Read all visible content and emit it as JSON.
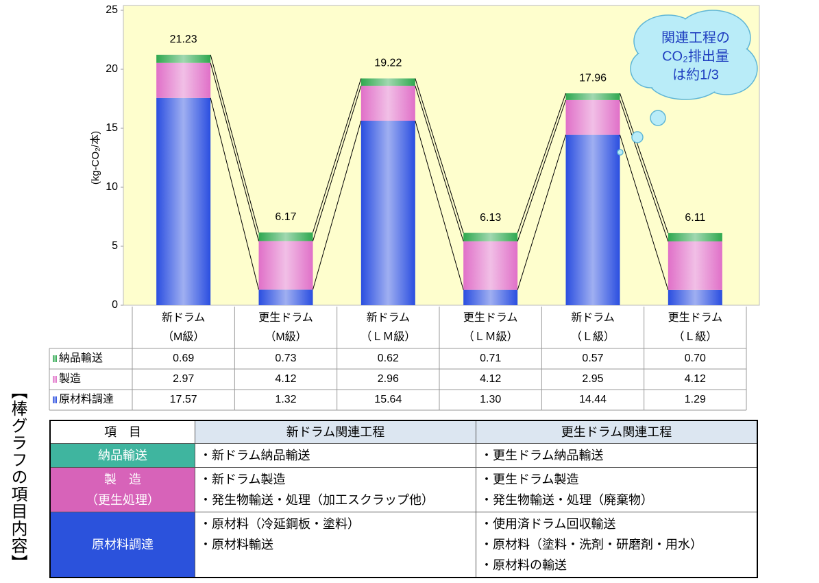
{
  "chart_data": {
    "type": "bar",
    "stacked": true,
    "y_label": "(kg-CO₂/本)",
    "categories": [
      [
        "新ドラム",
        "（M級）"
      ],
      [
        "更生ドラム",
        "（M級）"
      ],
      [
        "新ドラム",
        "（ＬＭ級）"
      ],
      [
        "更生ドラム",
        "（ＬＭ級）"
      ],
      [
        "新ドラム",
        "（Ｌ級）"
      ],
      [
        "更生ドラム",
        "（Ｌ級）"
      ]
    ],
    "series": [
      {
        "name": "納品輸送",
        "color": "#2fa84f",
        "values": [
          0.69,
          0.73,
          0.62,
          0.71,
          0.57,
          0.7
        ],
        "value_labels": [
          "0.69",
          "0.73",
          "0.62",
          "0.71",
          "0.57",
          "0.70"
        ]
      },
      {
        "name": "製造",
        "color": "#e070c8",
        "values": [
          2.97,
          4.12,
          2.96,
          4.12,
          2.95,
          4.12
        ],
        "value_labels": [
          "2.97",
          "4.12",
          "2.96",
          "4.12",
          "2.95",
          "4.12"
        ]
      },
      {
        "name": "原材料調達",
        "color": "#2a4ee0",
        "values": [
          17.57,
          1.32,
          15.64,
          1.3,
          14.44,
          1.29
        ],
        "value_labels": [
          "17.57",
          "1.32",
          "15.64",
          "1.30",
          "14.44",
          "1.29"
        ]
      }
    ],
    "totals": [
      21.23,
      6.17,
      19.22,
      6.13,
      17.96,
      6.11
    ],
    "ylim": [
      0,
      25
    ],
    "yticks": [
      0,
      5,
      10,
      15,
      20,
      25
    ],
    "grid": false,
    "annotation": [
      "関連工程の",
      "CO₂排出量",
      "は約1/3"
    ]
  },
  "side_label": "【棒グラフの項目内容】",
  "process_table": {
    "header": [
      "項　目",
      "新ドラム関連工程",
      "更生ドラム関連工程"
    ],
    "rows": [
      {
        "item": [
          "納品輸送"
        ],
        "color": "#3fb59f",
        "new": [
          "・新ドラム納品輸送"
        ],
        "renewed": [
          "・更生ドラム納品輸送"
        ]
      },
      {
        "item": [
          "製　造",
          "（更生処理）"
        ],
        "color": "#d763b9",
        "new": [
          "・新ドラム製造",
          "・発生物輸送・処理（加工スクラップ他）"
        ],
        "renewed": [
          "・更生ドラム製造",
          "・発生物輸送・処理（廃棄物）"
        ]
      },
      {
        "item": [
          "原材料調達"
        ],
        "color": "#2b52dc",
        "new": [
          "・原材料（冷延鋼板・塗料）",
          "・原材料輸送"
        ],
        "renewed": [
          "・使用済ドラム回収輸送",
          "・原材料（塗料・洗剤・研磨剤・用水）",
          "・原材料の輸送"
        ]
      }
    ]
  }
}
